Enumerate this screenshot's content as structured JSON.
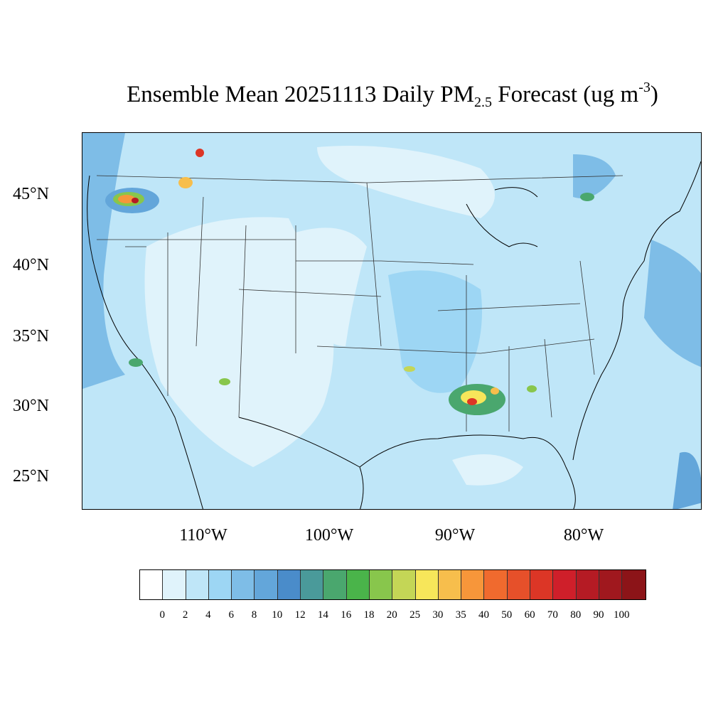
{
  "title": {
    "prefix": "Ensemble Mean 20251113 Daily PM",
    "subscript": "2.5",
    "middle": " Forecast (ug m",
    "superscript": "-3",
    "suffix": ")"
  },
  "lat_labels": [
    "45°N",
    "40°N",
    "35°N",
    "30°N",
    "25°N"
  ],
  "lon_labels": [
    "110°W",
    "100°W",
    "90°W",
    "80°W"
  ],
  "colorbar": {
    "labels": [
      "0",
      "2",
      "4",
      "6",
      "8",
      "10",
      "12",
      "14",
      "16",
      "18",
      "20",
      "25",
      "30",
      "35",
      "40",
      "50",
      "60",
      "70",
      "80",
      "90",
      "100"
    ],
    "colors": [
      "#ffffff",
      "#e0f3fb",
      "#bfe6f8",
      "#9dd6f4",
      "#7ebde7",
      "#63a6da",
      "#4a8cca",
      "#4a9a9a",
      "#4aa76e",
      "#4ab44a",
      "#88c64c",
      "#c4d656",
      "#f7e65a",
      "#f7be4c",
      "#f7963a",
      "#f06a2e",
      "#e6502a",
      "#dc3626",
      "#cf1f2a",
      "#b51b24",
      "#a0181e",
      "#8c1418"
    ]
  },
  "map": {
    "background_color": "#bfe6f8",
    "light_color": "#e0f3fb",
    "mid_color": "#9dd6f4",
    "dark_color": "#7ebde7"
  }
}
